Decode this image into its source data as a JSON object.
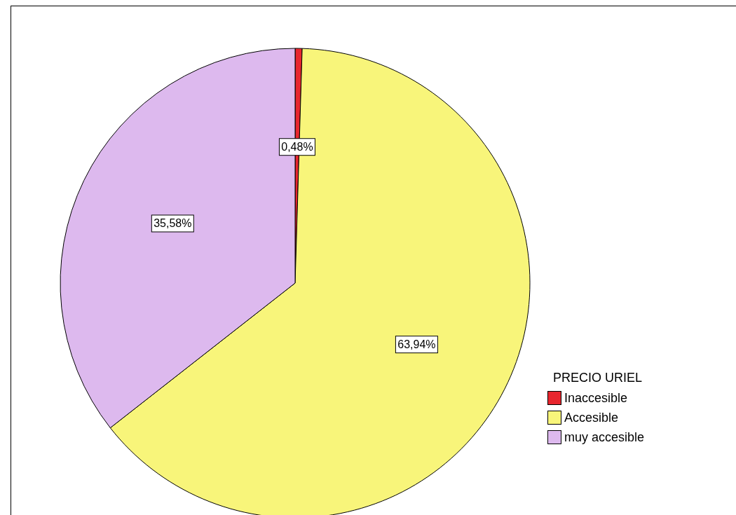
{
  "chart_data": {
    "type": "pie",
    "legend_title": "PRECIO URIEL",
    "categories": [
      "Inaccesible",
      "Accesible",
      "muy accesible"
    ],
    "values": [
      0.48,
      63.94,
      35.58
    ],
    "colors": [
      "#e8262e",
      "#f8f57a",
      "#ddb9ee"
    ],
    "value_labels": [
      "0,48%",
      "63,94%",
      "35,58%"
    ],
    "legend": "right"
  }
}
